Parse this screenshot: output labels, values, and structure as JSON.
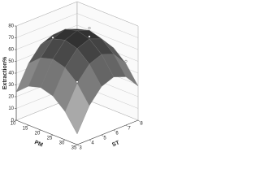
{
  "chart_data": {
    "type": "surface",
    "xlabel": "ST",
    "ylabel": "PM",
    "zlabel": "Extraction%",
    "x": [
      3,
      4,
      5,
      6,
      7,
      8
    ],
    "y": [
      10,
      15,
      20,
      25,
      30,
      35
    ],
    "z": [
      [
        24,
        33,
        36,
        33,
        24,
        9
      ],
      [
        44,
        53,
        56,
        53,
        44,
        29
      ],
      [
        56,
        65,
        68,
        65,
        56,
        41
      ],
      [
        60,
        69,
        72,
        69,
        60,
        45
      ],
      [
        56,
        65,
        68,
        65,
        56,
        41
      ],
      [
        44,
        53,
        56,
        53,
        44,
        29
      ]
    ],
    "xlim": [
      3,
      8
    ],
    "xticks": [
      3,
      4,
      5,
      6,
      7,
      8
    ],
    "ylim": [
      10,
      35
    ],
    "yticks": [
      10,
      15,
      20,
      25,
      30,
      35
    ],
    "zlim": [
      0,
      80
    ],
    "zticks": [
      0,
      10,
      20,
      30,
      40,
      50,
      60,
      70,
      80
    ],
    "colormap": [
      "#f4f4f4",
      "#111111"
    ],
    "points": {
      "color": "#ffffff",
      "x": [
        5,
        6,
        7,
        4,
        8
      ],
      "y": [
        15,
        25,
        20,
        30,
        30
      ],
      "z": [
        66,
        71,
        70,
        45,
        46
      ]
    },
    "grid": true
  }
}
